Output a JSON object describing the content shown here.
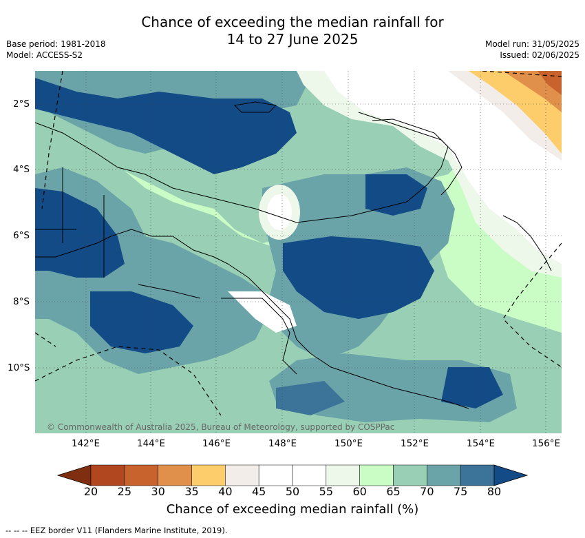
{
  "title_line1": "Chance of exceeding the median rainfall for",
  "title_line2": "14 to 27 June 2025",
  "base_period": "Base period: 1981-2018",
  "model": "Model: ACCESS-S2",
  "model_run": "Model run: 31/05/2025",
  "issued": "Issued: 02/06/2025",
  "lat_labels": [
    "2°S",
    "4°S",
    "6°S",
    "8°S",
    "10°S"
  ],
  "lon_labels": [
    "142°E",
    "144°E",
    "146°E",
    "148°E",
    "150°E",
    "152°E",
    "154°E",
    "156°E"
  ],
  "copyright": "© Commonwealth of Australia 2025, Bureau of Meteorology, supported by COSPPac",
  "colorbar": {
    "ticks": [
      "20",
      "25",
      "30",
      "35",
      "40",
      "45",
      "50",
      "55",
      "60",
      "65",
      "70",
      "75",
      "80"
    ],
    "colors": [
      "#7f2e10",
      "#b0471f",
      "#c9632e",
      "#e0904a",
      "#fdcd6b",
      "#f2ede9",
      "#ffffff",
      "#ffffff",
      "#edf8ea",
      "#cafcc6",
      "#99d0b5",
      "#6aa3a8",
      "#3c7399",
      "#134b86"
    ],
    "title": "Chance of exceeding median rainfall (%)"
  },
  "footer": "-- -- -- EEZ border V11 (Flanders Marine Institute, 2019)."
}
